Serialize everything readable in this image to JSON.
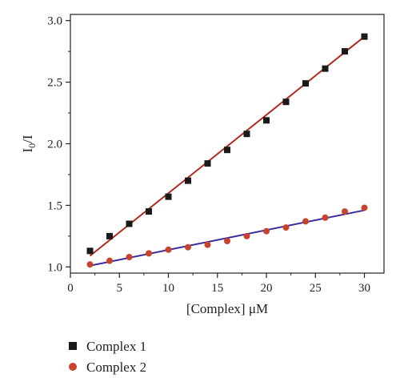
{
  "chart_data": {
    "type": "scatter",
    "xlabel": "[Complex] μM",
    "ylabel_main": "I",
    "ylabel_sub": "0",
    "ylabel_tail": "/I",
    "xlim": [
      0,
      32
    ],
    "ylim": [
      0.95,
      3.05
    ],
    "xticks": [
      0,
      5,
      10,
      15,
      20,
      25,
      30
    ],
    "xtick_labels": [
      "0",
      "5",
      "10",
      "15",
      "20",
      "25",
      "30"
    ],
    "yticks": [
      1.0,
      1.5,
      2.0,
      2.5,
      3.0
    ],
    "ytick_labels": [
      "1.0",
      "1.5",
      "2.0",
      "2.5",
      "3.0"
    ],
    "grid": false,
    "legend_position": "bottom-left-outside",
    "series": [
      {
        "name": "Complex 1",
        "marker": "square",
        "marker_color": "#1a1a1a",
        "line_color": "#b02a1e",
        "x": [
          2,
          4,
          6,
          8,
          10,
          12,
          14,
          16,
          18,
          20,
          22,
          24,
          26,
          28,
          30
        ],
        "y": [
          1.13,
          1.25,
          1.35,
          1.45,
          1.57,
          1.7,
          1.84,
          1.95,
          2.08,
          2.19,
          2.34,
          2.49,
          2.61,
          2.75,
          2.87
        ],
        "fit": [
          [
            2,
            1.09
          ],
          [
            30,
            2.87
          ]
        ]
      },
      {
        "name": "Complex 2",
        "marker": "circle",
        "marker_color": "#c8432b",
        "line_color": "#3b2a9a",
        "x": [
          2,
          4,
          6,
          8,
          10,
          12,
          14,
          16,
          18,
          20,
          22,
          24,
          26,
          28,
          30
        ],
        "y": [
          1.02,
          1.05,
          1.08,
          1.11,
          1.14,
          1.16,
          1.18,
          1.21,
          1.25,
          1.29,
          1.32,
          1.37,
          1.4,
          1.45,
          1.48
        ],
        "fit": [
          [
            2,
            1.01
          ],
          [
            30,
            1.46
          ]
        ]
      }
    ]
  }
}
